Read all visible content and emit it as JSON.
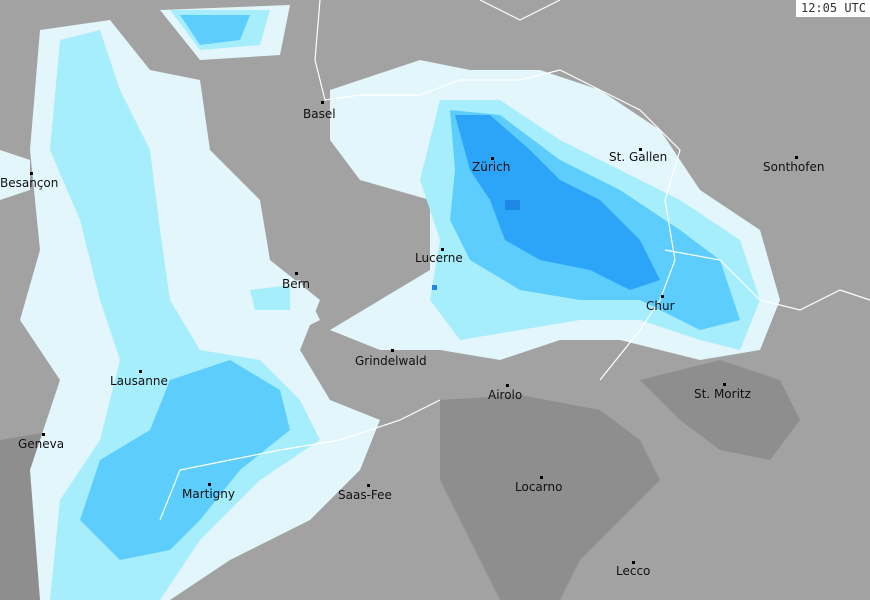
{
  "timestamp": "12:05 UTC",
  "colors": {
    "background": "#a2a2a2",
    "terrain_dark": "#8e8e8e",
    "precip_very_light": "#e2f6fc",
    "precip_light": "#a6eefc",
    "precip_moderate": "#5ccdfc",
    "precip_heavy": "#2ca4f8",
    "precip_very_heavy": "#1e88e8",
    "borders": "#ffffff"
  },
  "cities": [
    {
      "name": "Basel"
    },
    {
      "name": "Besançon"
    },
    {
      "name": "Zürich"
    },
    {
      "name": "St. Gallen"
    },
    {
      "name": "Sonthofen"
    },
    {
      "name": "Lucerne"
    },
    {
      "name": "Bern"
    },
    {
      "name": "Chur"
    },
    {
      "name": "Grindelwald"
    },
    {
      "name": "Lausanne"
    },
    {
      "name": "Airolo"
    },
    {
      "name": "St. Moritz"
    },
    {
      "name": "Geneva"
    },
    {
      "name": "Martigny"
    },
    {
      "name": "Saas-Fee"
    },
    {
      "name": "Locarno"
    },
    {
      "name": "Lecco"
    }
  ]
}
